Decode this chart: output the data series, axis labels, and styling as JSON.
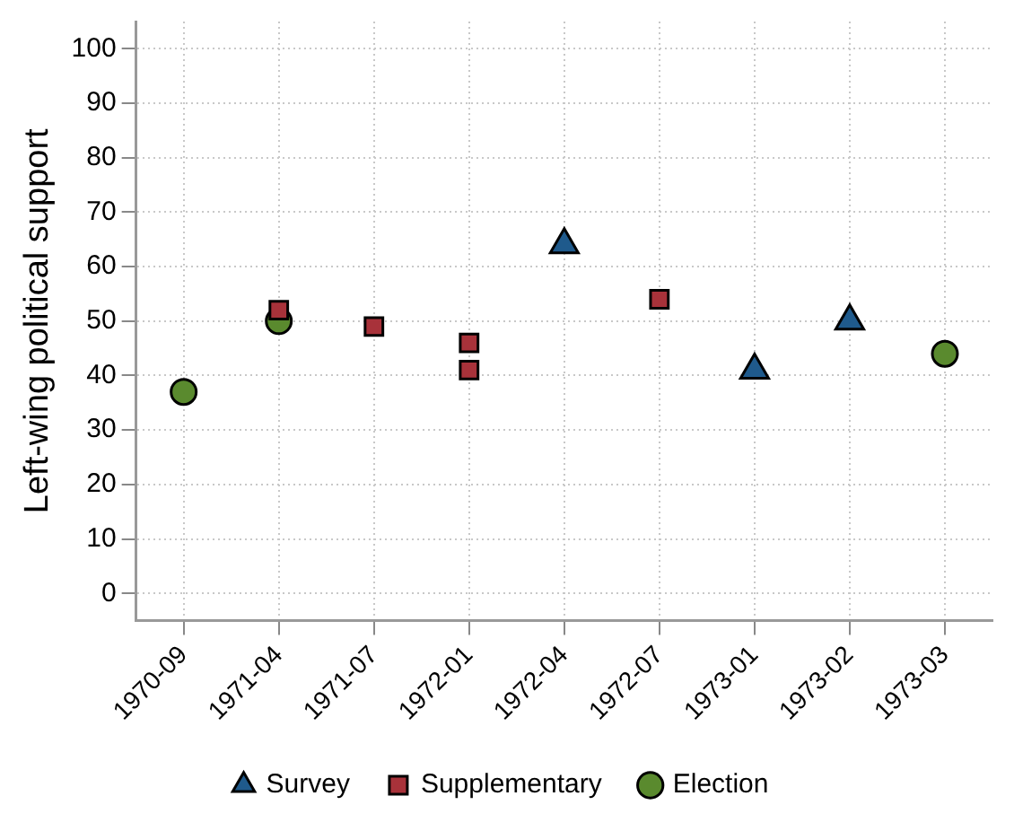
{
  "chart_data": {
    "type": "scatter",
    "ylabel": "Left-wing political support",
    "categories": [
      "1970-09",
      "1971-04",
      "1971-07",
      "1972-01",
      "1972-04",
      "1972-07",
      "1973-01",
      "1973-02",
      "1973-03"
    ],
    "series": [
      {
        "name": "Survey",
        "color": "#1f5a8c",
        "marker": "triangle",
        "values": [
          null,
          null,
          null,
          null,
          64,
          null,
          41,
          50,
          null
        ]
      },
      {
        "name": "Supplementary",
        "color": "#a8323a",
        "marker": "square",
        "values": [
          null,
          52,
          49,
          46,
          null,
          54,
          null,
          null,
          null
        ]
      },
      {
        "color": "#a8323a",
        "marker": "square",
        "values": [
          null,
          null,
          null,
          41,
          null,
          null,
          null,
          null,
          null
        ]
      },
      {
        "name": "Election",
        "color": "#5a8a2e",
        "marker": "circle",
        "values": [
          37,
          50,
          null,
          null,
          null,
          null,
          null,
          null,
          44
        ]
      }
    ],
    "ylim": [
      -5,
      105
    ],
    "yticks": [
      0,
      10,
      20,
      30,
      40,
      50,
      60,
      70,
      80,
      90,
      100
    ],
    "grid": true,
    "legend": "bottom"
  }
}
